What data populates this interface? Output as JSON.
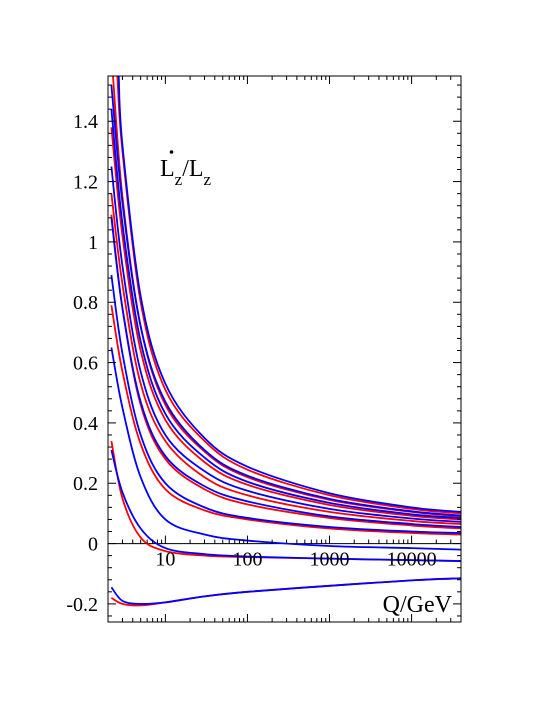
{
  "chart_data": {
    "type": "line",
    "title": "",
    "xlabel": "Q/GeV",
    "ylabel": "",
    "annotation": {
      "main": "L",
      "sub": "z",
      "slash": "/L",
      "sub2": "z"
    },
    "x_scale": "log",
    "xlim": [
      2,
      40000
    ],
    "ylim": [
      -0.26,
      1.55
    ],
    "x_ticks": [
      10,
      100,
      1000,
      10000
    ],
    "x_tick_labels": [
      "10",
      "100",
      "1000",
      "10000"
    ],
    "y_ticks": [
      -0.2,
      0,
      0.2,
      0.4,
      0.6,
      0.8,
      1,
      1.2,
      1.4
    ],
    "y_tick_labels": [
      "-0.2",
      "0",
      "0.2",
      "0.4",
      "0.6",
      "0.8",
      "1",
      "1.2",
      "1.4"
    ],
    "colors": {
      "red": "#ff0000",
      "blue": "#0000ff"
    },
    "series": [
      {
        "color": "#ff0000",
        "x": [
          2.2,
          3,
          5,
          10,
          30,
          100,
          1000,
          10000,
          40000
        ],
        "y": [
          -0.18,
          -0.2,
          -0.205,
          -0.195,
          -0.175,
          -0.16,
          -0.14,
          -0.122,
          -0.115
        ]
      },
      {
        "color": "#0000ff",
        "x": [
          2.2,
          3,
          5,
          10,
          30,
          100,
          1000,
          10000,
          40000
        ],
        "y": [
          -0.145,
          -0.19,
          -0.2,
          -0.195,
          -0.175,
          -0.16,
          -0.14,
          -0.122,
          -0.115
        ]
      },
      {
        "color": "#ff0000",
        "x": [
          2.2,
          3,
          5,
          10,
          30,
          100,
          1000,
          10000,
          40000
        ],
        "y": [
          0.34,
          0.15,
          0.02,
          -0.025,
          -0.04,
          -0.045,
          -0.05,
          -0.055,
          -0.058
        ]
      },
      {
        "color": "#0000ff",
        "x": [
          2.2,
          3,
          5,
          10,
          30,
          100,
          1000,
          10000,
          40000
        ],
        "y": [
          0.31,
          0.17,
          0.05,
          -0.015,
          -0.035,
          -0.043,
          -0.05,
          -0.055,
          -0.058
        ]
      },
      {
        "color": "#0000ff",
        "x": [
          2.2,
          3,
          5,
          10,
          30,
          100,
          1000,
          10000,
          40000
        ],
        "y": [
          0.65,
          0.45,
          0.22,
          0.08,
          0.03,
          0.01,
          -0.008,
          -0.015,
          -0.02
        ]
      },
      {
        "color": "#ff0000",
        "x": [
          2.2,
          3,
          5,
          10,
          30,
          100,
          1000,
          10000,
          40000
        ],
        "y": [
          0.79,
          0.57,
          0.33,
          0.18,
          0.11,
          0.08,
          0.05,
          0.035,
          0.03
        ]
      },
      {
        "color": "#0000ff",
        "x": [
          2.2,
          3,
          5,
          10,
          30,
          100,
          1000,
          10000,
          40000
        ],
        "y": [
          0.89,
          0.63,
          0.36,
          0.2,
          0.12,
          0.085,
          0.055,
          0.04,
          0.035
        ]
      },
      {
        "color": "#ff0000",
        "x": [
          2.2,
          3,
          5,
          10,
          30,
          100,
          1000,
          10000,
          40000
        ],
        "y": [
          1.09,
          0.78,
          0.46,
          0.28,
          0.18,
          0.13,
          0.085,
          0.06,
          0.05
        ]
      },
      {
        "color": "#0000ff",
        "x": [
          2.2,
          3,
          5,
          10,
          30,
          100,
          1000,
          10000,
          40000
        ],
        "y": [
          1.08,
          0.78,
          0.47,
          0.29,
          0.19,
          0.14,
          0.09,
          0.065,
          0.055
        ]
      },
      {
        "color": "#ff0000",
        "x": [
          2.2,
          3,
          5,
          10,
          30,
          100,
          1000,
          10000,
          40000
        ],
        "y": [
          1.16,
          0.86,
          0.53,
          0.34,
          0.22,
          0.16,
          0.105,
          0.075,
          0.065
        ]
      },
      {
        "color": "#0000ff",
        "x": [
          2.2,
          3,
          5,
          10,
          30,
          100,
          1000,
          10000,
          40000
        ],
        "y": [
          1.25,
          0.92,
          0.57,
          0.36,
          0.24,
          0.175,
          0.115,
          0.083,
          0.072
        ]
      },
      {
        "color": "#ff0000",
        "x": [
          2.2,
          3,
          5,
          10,
          30,
          100,
          1000,
          10000,
          40000
        ],
        "y": [
          1.38,
          1.02,
          0.64,
          0.41,
          0.27,
          0.195,
          0.128,
          0.092,
          0.08
        ]
      },
      {
        "color": "#0000ff",
        "x": [
          2.2,
          3,
          5,
          10,
          30,
          100,
          1000,
          10000,
          40000
        ],
        "y": [
          1.44,
          1.06,
          0.67,
          0.43,
          0.285,
          0.205,
          0.135,
          0.097,
          0.085
        ]
      },
      {
        "color": "#ff0000",
        "x": [
          2.3,
          3,
          5,
          10,
          30,
          100,
          1000,
          10000,
          40000
        ],
        "y": [
          1.55,
          1.15,
          0.72,
          0.46,
          0.305,
          0.22,
          0.145,
          0.105,
          0.09
        ]
      },
      {
        "color": "#0000ff",
        "x": [
          2.2,
          3,
          5,
          10,
          30,
          100,
          1000,
          10000,
          40000
        ],
        "y": [
          1.52,
          1.13,
          0.72,
          0.47,
          0.31,
          0.225,
          0.148,
          0.107,
          0.093
        ]
      },
      {
        "color": "#ff0000",
        "x": [
          2.6,
          3,
          5,
          10,
          30,
          100,
          1000,
          10000,
          40000
        ],
        "y": [
          1.55,
          1.3,
          0.8,
          0.51,
          0.34,
          0.245,
          0.16,
          0.115,
          0.1
        ]
      },
      {
        "color": "#0000ff",
        "x": [
          2.7,
          3,
          5,
          10,
          30,
          100,
          1000,
          10000,
          40000
        ],
        "y": [
          1.55,
          1.32,
          0.82,
          0.53,
          0.35,
          0.255,
          0.167,
          0.12,
          0.105
        ]
      }
    ]
  }
}
